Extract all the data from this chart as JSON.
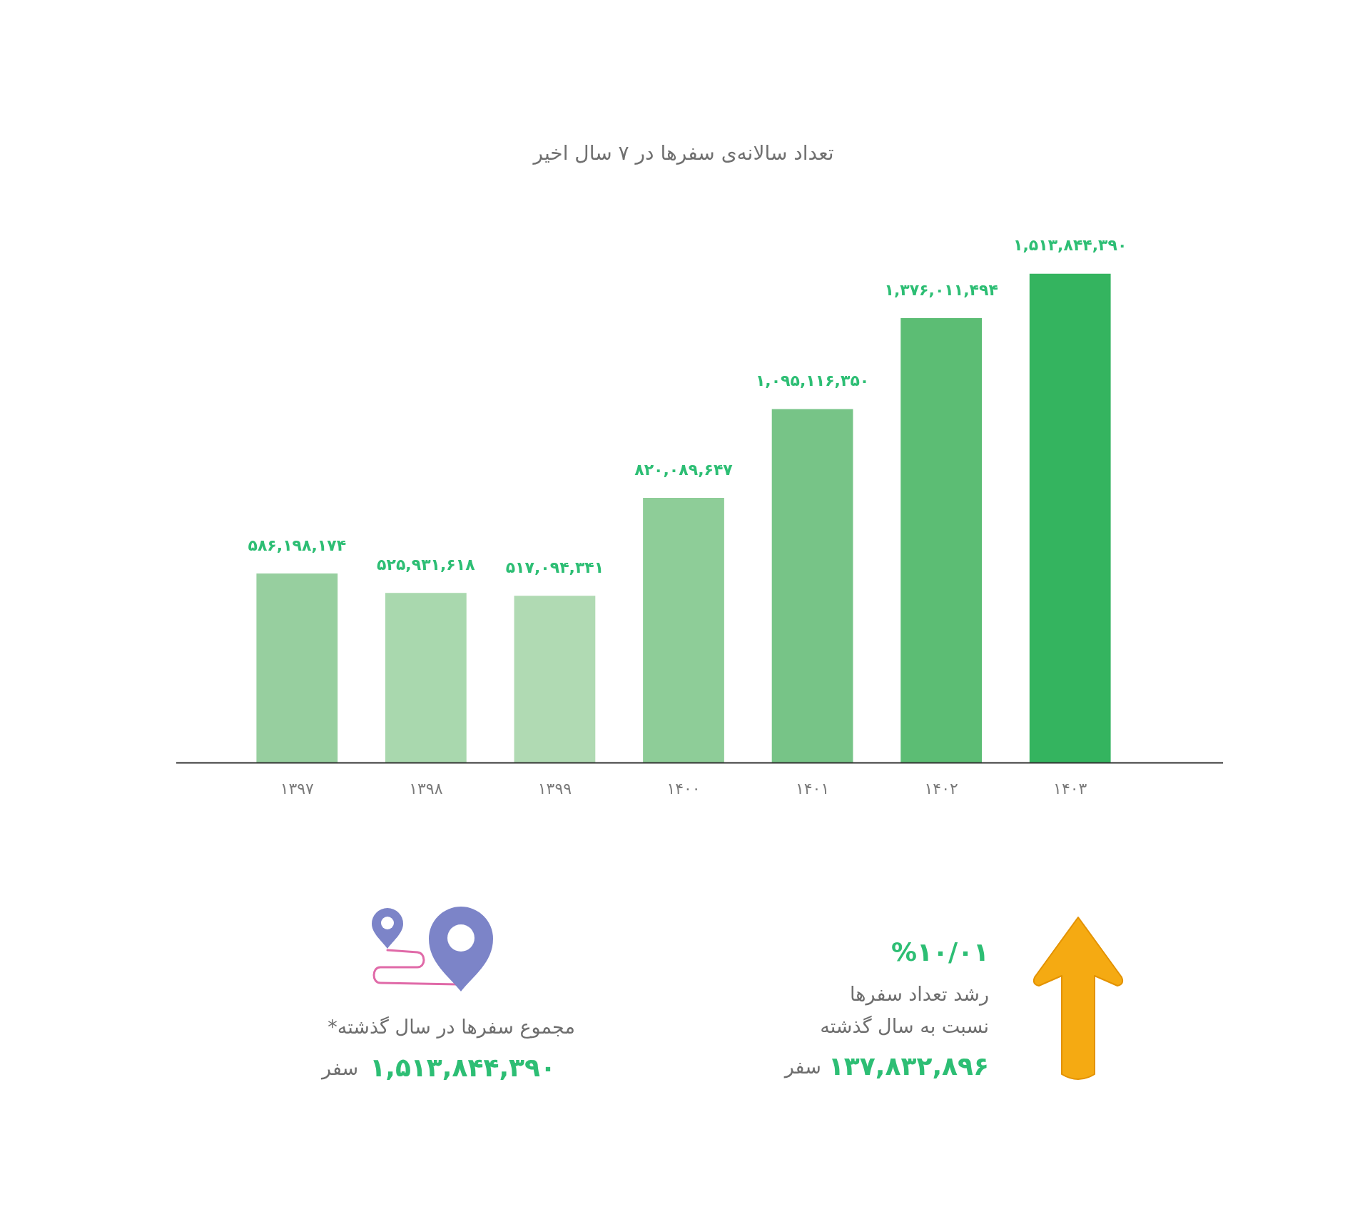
{
  "chart_data": {
    "type": "bar",
    "title": "تعداد سالانه‌ی سفرها در ۷ سال اخیر",
    "categories": [
      "۱۳۹۷",
      "۱۳۹۸",
      "۱۳۹۹",
      "۱۴۰۰",
      "۱۴۰۱",
      "۱۴۰۲",
      "۱۴۰۳"
    ],
    "values": [
      586198174,
      525931618,
      517094341,
      820089647,
      1095116350,
      1376011494,
      1513844390
    ],
    "colors": [
      "#97cf9f",
      "#a9d8ae",
      "#b0dab3",
      "#8ecd98",
      "#77c487",
      "#5cbd74",
      "#34b45f"
    ],
    "value_labels": [
      "۵۸۶,۱۹۸,۱۷۴",
      "۵۲۵,۹۳۱,۶۱۸",
      "۵۱۷,۰۹۴,۳۴۱",
      "۸۲۰,۰۸۹,۶۴۷",
      "۱,۰۹۵,۱۱۶,۳۵۰",
      "۱,۳۷۶,۰۱۱,۴۹۴",
      "۱,۵۱۳,۸۴۴,۳۹۰"
    ],
    "tick_labels": "x",
    "annotations": [
      "%۱۰/۰۱",
      "رشد تعداد سفرها",
      "نسبت به سال گذشته",
      "۱۳۷,۸۳۲,۸۹۶",
      "سفر",
      "مجموع سفرها در سال گذشته*",
      "۱,۵۱۳,۸۴۴,۳۹۰",
      "سفر"
    ]
  }
}
